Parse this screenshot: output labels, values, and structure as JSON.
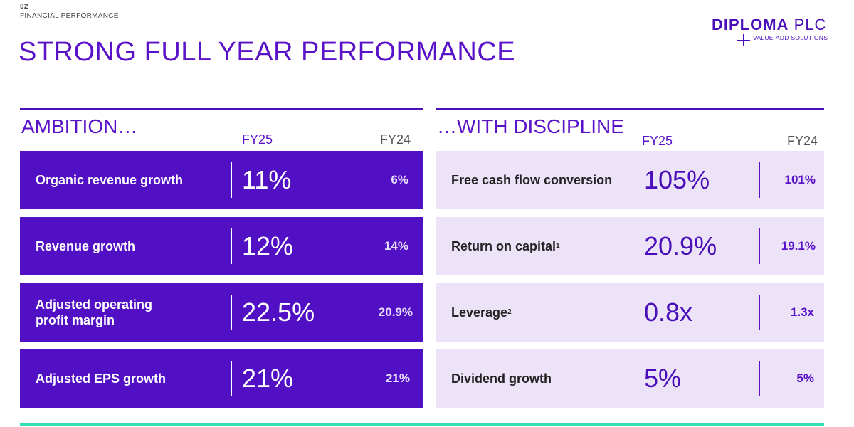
{
  "header": {
    "section_number": "02",
    "section_name": "FINANCIAL PERFORMANCE",
    "title": "STRONG FULL YEAR PERFORMANCE"
  },
  "logo": {
    "brand_bold": "DIPLOMA",
    "brand_light": " PLC",
    "tagline": "VALUE-ADD SOLUTIONS"
  },
  "colors": {
    "primary": "#5210c4",
    "title": "#5a12c8",
    "light_row": "#ece3f8",
    "accent_bar": "#2fe0b4"
  },
  "ambition": {
    "title": "AMBITION…",
    "col_fy25": "FY25",
    "col_fy24": "FY24",
    "rows": [
      {
        "label": "Organic revenue growth",
        "fy25": "11%",
        "fy24": "6%"
      },
      {
        "label": "Revenue growth",
        "fy25": "12%",
        "fy24": "14%"
      },
      {
        "label": "Adjusted operating profit margin",
        "fy25": "22.5%",
        "fy24": "20.9%"
      },
      {
        "label": "Adjusted EPS growth",
        "fy25": "21%",
        "fy24": "21%"
      }
    ]
  },
  "discipline": {
    "title": "…WITH DISCIPLINE",
    "col_fy25": "FY25",
    "col_fy24": "FY24",
    "rows": [
      {
        "label": "Free cash flow conversion",
        "sup": "",
        "fy25": "105%",
        "fy24": "101%"
      },
      {
        "label": "Return on capital",
        "sup": "1",
        "fy25": "20.9%",
        "fy24": "19.1%"
      },
      {
        "label": "Leverage",
        "sup": "2",
        "fy25": "0.8x",
        "fy24": "1.3x"
      },
      {
        "label": "Dividend growth",
        "sup": "",
        "fy25": "5%",
        "fy24": "5%"
      }
    ]
  }
}
